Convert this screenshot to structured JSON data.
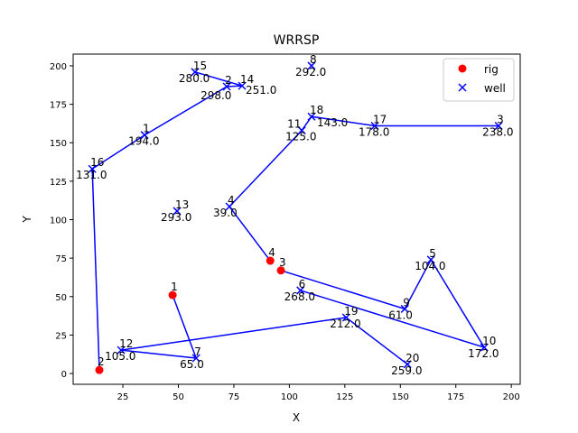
{
  "chart_data": {
    "type": "scatter",
    "title": "WRRSP",
    "xlabel": "X",
    "ylabel": "Y",
    "xlim": [
      2.6,
      204
    ],
    "ylim": [
      -7,
      207.6
    ],
    "xticks": [
      25,
      50,
      75,
      100,
      125,
      150,
      175,
      200
    ],
    "yticks": [
      0,
      25,
      50,
      75,
      100,
      125,
      150,
      175,
      200
    ],
    "grid": false,
    "legend": {
      "placement": "top-right",
      "entries": [
        "rig",
        "well"
      ]
    },
    "colors": {
      "rig": "#ff0000",
      "well": "#0000ff",
      "route": "#0000ff"
    },
    "rigs": [
      {
        "id": "1",
        "x": 47.4,
        "y": 51
      },
      {
        "id": "2",
        "x": 14.4,
        "y": 2.3
      },
      {
        "id": "3",
        "x": 96.2,
        "y": 67
      },
      {
        "id": "4",
        "x": 91.4,
        "y": 73.3
      }
    ],
    "wells": [
      {
        "id": "1",
        "x": 34.8,
        "y": 155,
        "value": "194.0"
      },
      {
        "id": "2",
        "x": 71.8,
        "y": 186.5,
        "value": "298.0"
      },
      {
        "id": "3",
        "x": 194.3,
        "y": 161,
        "value": "238.0"
      },
      {
        "id": "4",
        "x": 73,
        "y": 108.5,
        "value": "39.0"
      },
      {
        "id": "5",
        "x": 163.8,
        "y": 74,
        "value": "104.0"
      },
      {
        "id": "6",
        "x": 105,
        "y": 54,
        "value": "268.0"
      },
      {
        "id": "7",
        "x": 58,
        "y": 10,
        "value": "65.0"
      },
      {
        "id": "8",
        "x": 110,
        "y": 200,
        "value": "292.0"
      },
      {
        "id": "9",
        "x": 152,
        "y": 42,
        "value": "61.0"
      },
      {
        "id": "10",
        "x": 187.8,
        "y": 17,
        "value": "172.0"
      },
      {
        "id": "11",
        "x": 105.6,
        "y": 158,
        "value": "125.0"
      },
      {
        "id": "12",
        "x": 24.2,
        "y": 15.2,
        "value": "105.0"
      },
      {
        "id": "13",
        "x": 49.4,
        "y": 105.6,
        "value": "293.0"
      },
      {
        "id": "14",
        "x": 78.7,
        "y": 187,
        "value": "251.0"
      },
      {
        "id": "15",
        "x": 57.5,
        "y": 196,
        "value": "280.0"
      },
      {
        "id": "16",
        "x": 11.2,
        "y": 133,
        "value": "131.0"
      },
      {
        "id": "17",
        "x": 138.5,
        "y": 161,
        "value": "178.0"
      },
      {
        "id": "18",
        "x": 110,
        "y": 167,
        "value": "143.0"
      },
      {
        "id": "19",
        "x": 125.6,
        "y": 36.4,
        "value": "212.0"
      },
      {
        "id": "20",
        "x": 153.2,
        "y": 6,
        "value": "259.0"
      }
    ],
    "routes": [
      {
        "rig": "2",
        "wells": [
          "16",
          "1",
          "2",
          "14",
          "15"
        ]
      },
      {
        "rig": "4",
        "wells": [
          "4",
          "11",
          "18",
          "17",
          "3"
        ]
      },
      {
        "rig": "3",
        "wells": [
          "9",
          "5",
          "10",
          "6"
        ]
      },
      {
        "rig": "1",
        "wells": [
          "7",
          "12",
          "19",
          "20"
        ]
      }
    ]
  }
}
